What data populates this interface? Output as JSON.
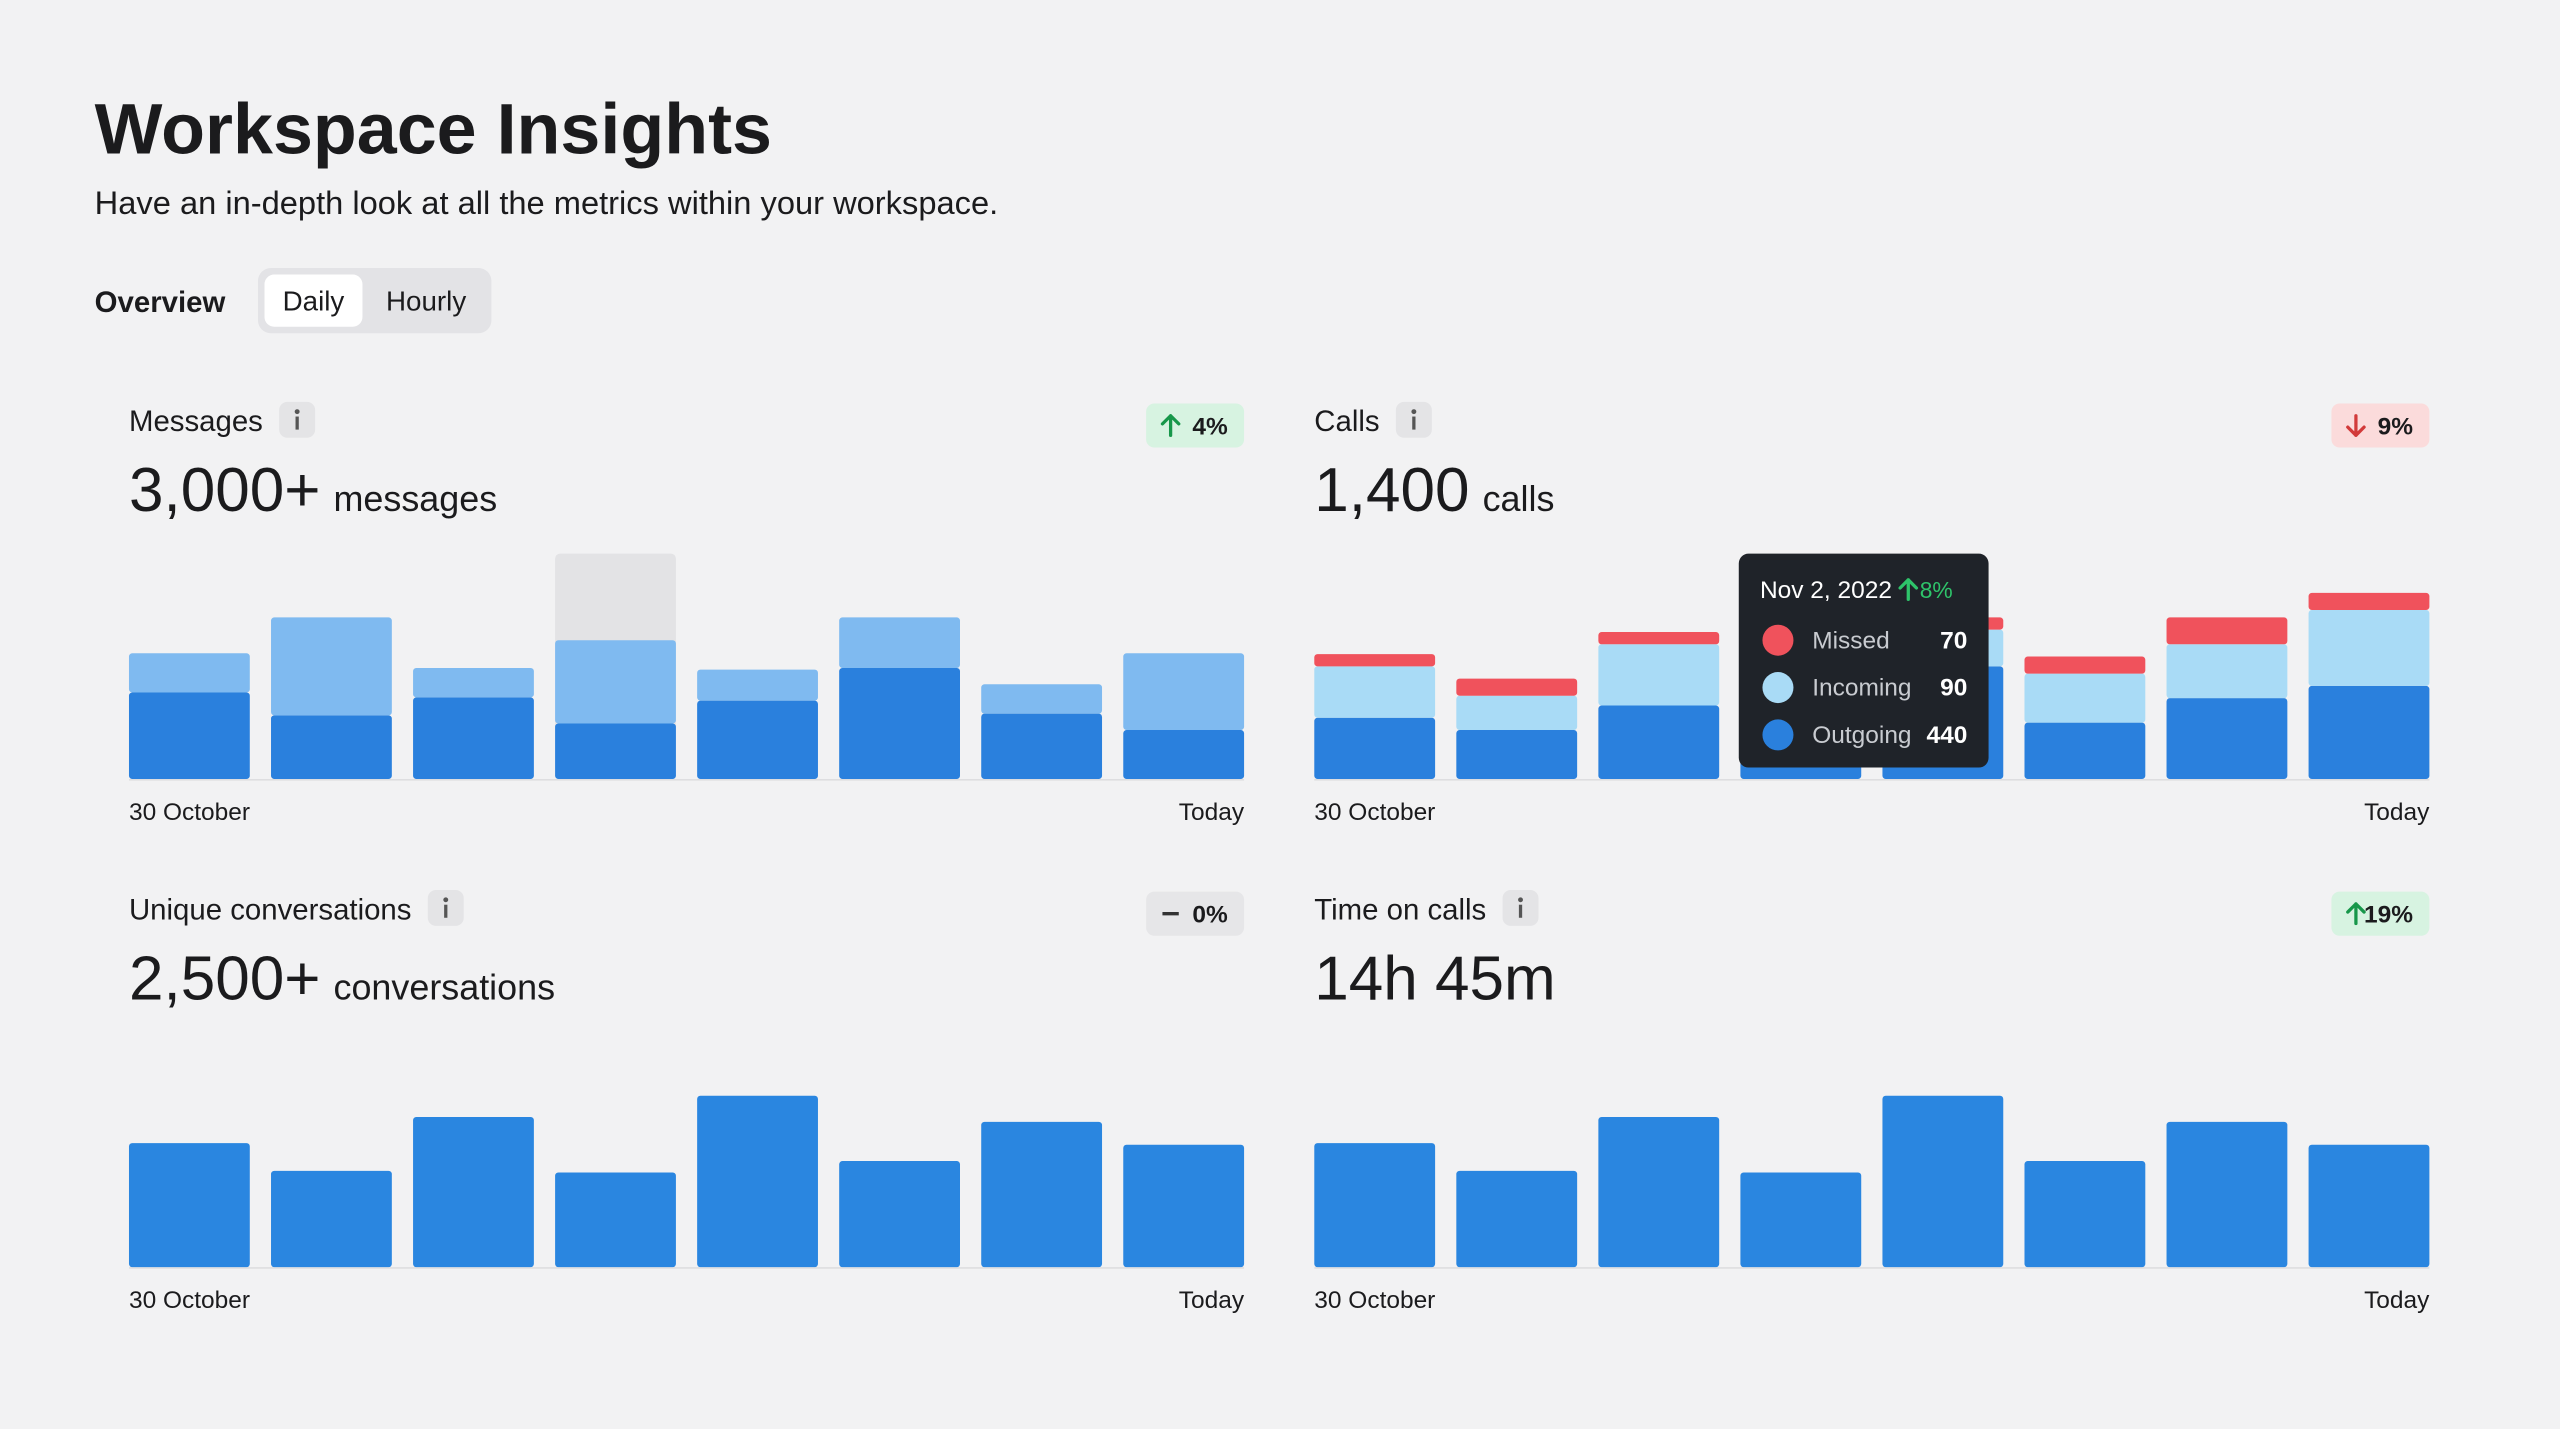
{
  "header": {
    "title": "Workspace Insights",
    "subtitle": "Have an in-depth look at all the metrics within your workspace."
  },
  "tabs": {
    "label": "Overview",
    "options": [
      "Daily",
      "Hourly"
    ]
  },
  "panels": [
    {
      "title": "Messages",
      "value": "3,000+",
      "unit": "messages",
      "change": {
        "direction": "up",
        "text": "4%"
      },
      "chart_data": {
        "type": "stacked-bar",
        "categories": [
          "30 October",
          null,
          null,
          null,
          null,
          null,
          null,
          "Today"
        ],
        "ylim": [
          0,
          150
        ],
        "series": [
          {
            "color": "#2a80dd",
            "values": [
              53,
              39,
              50,
              34,
              48,
              68,
              40,
              30
            ]
          },
          {
            "color": "#7fbaf0",
            "values": [
              24,
              60,
              18,
              51,
              19,
              31,
              18,
              47
            ]
          }
        ]
      }
    },
    {
      "title": "Calls",
      "value": "1,400",
      "unit": "calls",
      "change": {
        "direction": "down",
        "text": "9%"
      },
      "chart_data": {
        "type": "stacked-bar",
        "categories": [
          "30 October",
          null,
          null,
          null,
          null,
          null,
          null,
          "Today"
        ],
        "ylim": [
          0,
          1000
        ],
        "series": [
          {
            "name": "Outgoing",
            "color": "#2a80dd",
            "values": [
              250,
              200,
              300,
              440,
              460,
              230,
              330,
              380
            ]
          },
          {
            "name": "Incoming",
            "color": "#a9dbf6",
            "values": [
              210,
              140,
              250,
              90,
              150,
              200,
              220,
              310
            ]
          },
          {
            "name": "Missed",
            "color": "#f0525c",
            "values": [
              50,
              70,
              50,
              70,
              50,
              70,
              110,
              70
            ]
          }
        ],
        "tooltip": {
          "date": "Nov 2, 2022",
          "change": {
            "direction": "up",
            "text": "8%"
          }
        }
      }
    },
    {
      "title": "Unique conversations",
      "value": "2,500+",
      "unit": "conversations",
      "change": {
        "direction": "flat",
        "text": "0%"
      },
      "chart_data": {
        "type": "bar",
        "categories": [
          "30 October",
          null,
          null,
          null,
          null,
          null,
          null,
          "Today"
        ],
        "ylim": [
          0,
          150
        ],
        "series": [
          {
            "color": "#2a86e0",
            "values": [
              76,
              59,
              92,
              58,
              105,
              65,
              89,
              75
            ]
          }
        ]
      }
    },
    {
      "title": "Time on calls",
      "value": "14h 45m",
      "change": {
        "direction": "up",
        "text": "19%"
      },
      "chart_data": {
        "type": "bar",
        "categories": [
          "30 October",
          null,
          null,
          null,
          null,
          null,
          null,
          "Today"
        ],
        "ylim": [
          0,
          150
        ],
        "series": [
          {
            "color": "#2a86e0",
            "values": [
              76,
              59,
              92,
              58,
              105,
              65,
              89,
              75
            ]
          }
        ]
      }
    }
  ]
}
